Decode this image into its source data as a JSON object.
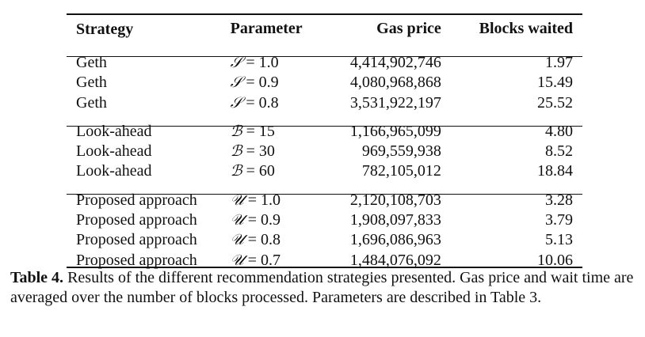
{
  "table": {
    "headers": {
      "strategy": "Strategy",
      "parameter": "Parameter",
      "gas_price": "Gas price",
      "blocks_waited": "Blocks waited"
    },
    "groups": [
      {
        "rows": [
          {
            "strategy": "Geth",
            "param_symbol": "𝒮",
            "param_value": "= 1.0",
            "gas_price": "4,414,902,746",
            "blocks_waited": "1.97"
          },
          {
            "strategy": "Geth",
            "param_symbol": "𝒮",
            "param_value": "= 0.9",
            "gas_price": "4,080,968,868",
            "blocks_waited": "15.49"
          },
          {
            "strategy": "Geth",
            "param_symbol": "𝒮",
            "param_value": "= 0.8",
            "gas_price": "3,531,922,197",
            "blocks_waited": "25.52"
          }
        ]
      },
      {
        "rows": [
          {
            "strategy": "Look-ahead",
            "param_symbol": "ℬ",
            "param_value": "= 15",
            "gas_price": "1,166,965,099",
            "blocks_waited": "4.80"
          },
          {
            "strategy": "Look-ahead",
            "param_symbol": "ℬ",
            "param_value": "= 30",
            "gas_price": "969,559,938",
            "blocks_waited": "8.52"
          },
          {
            "strategy": "Look-ahead",
            "param_symbol": "ℬ",
            "param_value": "= 60",
            "gas_price": "782,105,012",
            "blocks_waited": "18.84"
          }
        ]
      },
      {
        "rows": [
          {
            "strategy": "Proposed approach",
            "param_symbol": "𝒰",
            "param_value": "= 1.0",
            "gas_price": "2,120,108,703",
            "blocks_waited": "3.28"
          },
          {
            "strategy": "Proposed approach",
            "param_symbol": "𝒰",
            "param_value": "= 0.9",
            "gas_price": "1,908,097,833",
            "blocks_waited": "3.79"
          },
          {
            "strategy": "Proposed approach",
            "param_symbol": "𝒰",
            "param_value": "= 0.8",
            "gas_price": "1,696,086,963",
            "blocks_waited": "5.13"
          },
          {
            "strategy": "Proposed approach",
            "param_symbol": "𝒰",
            "param_value": "= 0.7",
            "gas_price": "1,484,076,092",
            "blocks_waited": "10.06"
          }
        ]
      }
    ]
  },
  "caption": {
    "label": "Table 4.",
    "text": "Results of the different recommendation strategies presented. Gas price and wait time are averaged over the number of blocks processed. Parameters are described in Table 3."
  }
}
